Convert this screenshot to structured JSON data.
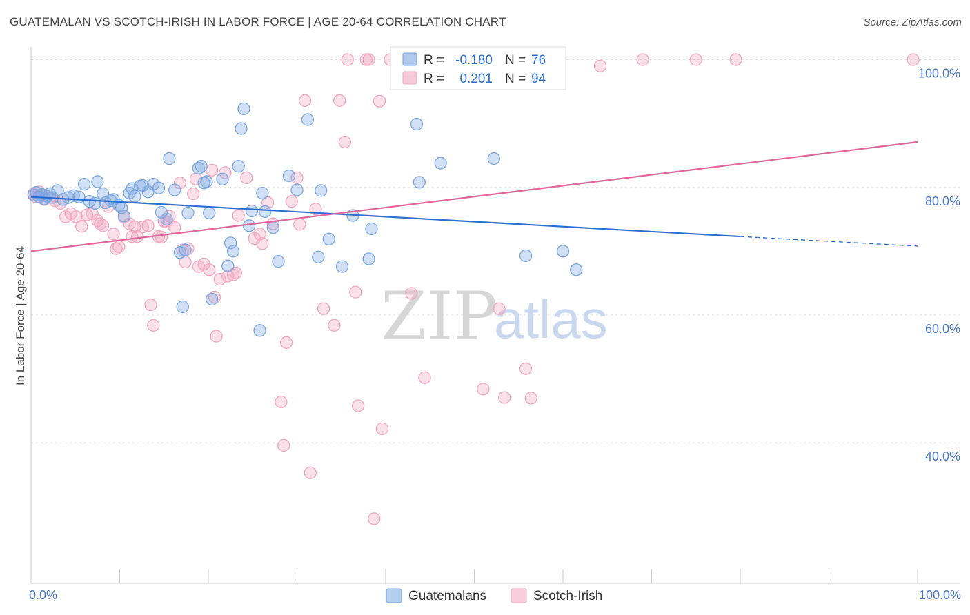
{
  "title": "GUATEMALAN VS SCOTCH-IRISH IN LABOR FORCE | AGE 20-64 CORRELATION CHART",
  "source": "Source: ZipAtlas.com",
  "watermark": {
    "zip": "ZIP",
    "atlas": "atlas"
  },
  "chart_data": {
    "type": "scatter",
    "ylabel": "In Labor Force | Age 20-64",
    "xlim": [
      0,
      100
    ],
    "ylim": [
      18,
      102
    ],
    "x_tick_labels": [
      "0.0%",
      "100.0%"
    ],
    "y_ticks": [
      {
        "value": 100,
        "label": "100.0%"
      },
      {
        "value": 80,
        "label": "80.0%"
      },
      {
        "value": 60,
        "label": "60.0%"
      },
      {
        "value": 40,
        "label": "40.0%"
      }
    ],
    "grid": true,
    "legend_position": "top-center",
    "series": [
      {
        "name": "Guatemalans",
        "color": "#7aa6e0",
        "line_color": "#2a6fd0",
        "R": "-0.180",
        "N": "76",
        "trend": {
          "x0": 0,
          "y0": 78.5,
          "x1": 80,
          "y1": 72.3,
          "dash_to_x": 100,
          "dash_to_y": 70.8
        },
        "points": [
          [
            0.3,
            78.8
          ],
          [
            0.6,
            79.2
          ],
          [
            0.9,
            78.5
          ],
          [
            1.2,
            78.9
          ],
          [
            1.5,
            78.2
          ],
          [
            1.8,
            78.6
          ],
          [
            2.1,
            79.0
          ],
          [
            2.4,
            78.4
          ],
          [
            3.0,
            79.5
          ],
          [
            3.6,
            78.1
          ],
          [
            4.2,
            78.4
          ],
          [
            4.8,
            78.7
          ],
          [
            5.4,
            78.5
          ],
          [
            6.0,
            80.5
          ],
          [
            6.6,
            77.8
          ],
          [
            7.2,
            77.5
          ],
          [
            7.5,
            80.9
          ],
          [
            8.1,
            79.0
          ],
          [
            8.4,
            77.6
          ],
          [
            9.0,
            77.9
          ],
          [
            9.3,
            78.1
          ],
          [
            9.9,
            77.2
          ],
          [
            10.2,
            76.8
          ],
          [
            10.5,
            75.5
          ],
          [
            11.1,
            79.1
          ],
          [
            11.4,
            79.8
          ],
          [
            11.7,
            78.6
          ],
          [
            12.3,
            80.2
          ],
          [
            12.6,
            80.3
          ],
          [
            13.2,
            79.3
          ],
          [
            13.8,
            80.5
          ],
          [
            14.4,
            79.9
          ],
          [
            14.7,
            76.1
          ],
          [
            15.3,
            75.0
          ],
          [
            15.6,
            84.5
          ],
          [
            16.2,
            79.6
          ],
          [
            16.8,
            69.8
          ],
          [
            17.1,
            61.3
          ],
          [
            17.4,
            70.2
          ],
          [
            17.7,
            76.0
          ],
          [
            18.9,
            83.0
          ],
          [
            19.2,
            83.3
          ],
          [
            19.5,
            80.7
          ],
          [
            19.8,
            80.9
          ],
          [
            20.1,
            76.0
          ],
          [
            20.4,
            62.5
          ],
          [
            21.6,
            81.3
          ],
          [
            22.2,
            67.7
          ],
          [
            22.5,
            71.3
          ],
          [
            22.8,
            70.0
          ],
          [
            23.4,
            83.3
          ],
          [
            23.7,
            89.2
          ],
          [
            24.0,
            92.3
          ],
          [
            24.6,
            74.0
          ],
          [
            24.9,
            76.3
          ],
          [
            25.8,
            57.6
          ],
          [
            26.1,
            79.1
          ],
          [
            26.4,
            76.2
          ],
          [
            27.3,
            73.7
          ],
          [
            27.9,
            68.4
          ],
          [
            29.1,
            81.8
          ],
          [
            30.0,
            79.6
          ],
          [
            31.2,
            90.6
          ],
          [
            32.4,
            69.1
          ],
          [
            32.7,
            79.5
          ],
          [
            33.6,
            71.9
          ],
          [
            35.1,
            67.6
          ],
          [
            36.3,
            75.6
          ],
          [
            38.1,
            68.8
          ],
          [
            38.4,
            73.5
          ],
          [
            43.5,
            89.9
          ],
          [
            43.8,
            80.8
          ],
          [
            46.2,
            83.8
          ],
          [
            52.2,
            84.5
          ],
          [
            55.8,
            69.3
          ],
          [
            60.0,
            70.0
          ],
          [
            61.5,
            67.1
          ]
        ]
      },
      {
        "name": "Scotch-Irish",
        "color": "#f2a6bf",
        "line_color": "#e0659a",
        "R": "0.201",
        "N": "94",
        "trend": {
          "x0": 0,
          "y0": 70.0,
          "x1": 100,
          "y1": 87.1
        },
        "points": [
          [
            0.3,
            79.0
          ],
          [
            0.6,
            78.5
          ],
          [
            0.9,
            79.3
          ],
          [
            1.2,
            78.8
          ],
          [
            1.5,
            78.1
          ],
          [
            2.1,
            78.4
          ],
          [
            2.7,
            77.9
          ],
          [
            3.3,
            77.5
          ],
          [
            3.9,
            75.4
          ],
          [
            4.5,
            75.9
          ],
          [
            5.1,
            75.4
          ],
          [
            5.7,
            73.9
          ],
          [
            6.3,
            75.7
          ],
          [
            6.9,
            75.9
          ],
          [
            7.5,
            74.8
          ],
          [
            7.8,
            74.3
          ],
          [
            8.1,
            74.0
          ],
          [
            8.7,
            77.0
          ],
          [
            9.3,
            72.7
          ],
          [
            9.6,
            70.4
          ],
          [
            9.9,
            70.7
          ],
          [
            10.5,
            75.3
          ],
          [
            11.1,
            74.3
          ],
          [
            11.4,
            72.3
          ],
          [
            11.7,
            73.8
          ],
          [
            12.0,
            72.3
          ],
          [
            12.6,
            73.8
          ],
          [
            13.2,
            74.0
          ],
          [
            13.5,
            61.6
          ],
          [
            13.8,
            58.4
          ],
          [
            14.4,
            72.3
          ],
          [
            14.7,
            72.2
          ],
          [
            15.0,
            74.7
          ],
          [
            15.3,
            74.6
          ],
          [
            15.6,
            75.5
          ],
          [
            16.2,
            73.7
          ],
          [
            16.8,
            80.7
          ],
          [
            17.1,
            70.2
          ],
          [
            17.4,
            68.3
          ],
          [
            17.7,
            70.4
          ],
          [
            18.3,
            79.0
          ],
          [
            18.6,
            81.3
          ],
          [
            18.9,
            67.6
          ],
          [
            19.5,
            68.0
          ],
          [
            20.1,
            67.1
          ],
          [
            20.4,
            82.7
          ],
          [
            20.7,
            62.8
          ],
          [
            20.9,
            56.7
          ],
          [
            21.3,
            65.6
          ],
          [
            21.9,
            82.3
          ],
          [
            22.2,
            66.1
          ],
          [
            22.8,
            66.3
          ],
          [
            23.1,
            66.6
          ],
          [
            23.4,
            75.6
          ],
          [
            24.3,
            81.5
          ],
          [
            25.2,
            72.0
          ],
          [
            25.8,
            72.7
          ],
          [
            26.1,
            71.2
          ],
          [
            26.7,
            77.6
          ],
          [
            27.3,
            74.3
          ],
          [
            28.2,
            46.4
          ],
          [
            28.5,
            39.6
          ],
          [
            28.8,
            55.7
          ],
          [
            29.4,
            77.8
          ],
          [
            30.0,
            81.5
          ],
          [
            30.3,
            74.2
          ],
          [
            30.9,
            93.6
          ],
          [
            31.5,
            35.3
          ],
          [
            32.1,
            76.6
          ],
          [
            33.0,
            61.0
          ],
          [
            34.2,
            58.4
          ],
          [
            34.8,
            93.6
          ],
          [
            35.4,
            87.1
          ],
          [
            35.7,
            100.0
          ],
          [
            36.6,
            63.6
          ],
          [
            36.9,
            45.8
          ],
          [
            37.8,
            100.0
          ],
          [
            38.1,
            100.0
          ],
          [
            38.7,
            28.1
          ],
          [
            39.3,
            93.5
          ],
          [
            39.6,
            42.2
          ],
          [
            40.5,
            100.0
          ],
          [
            41.4,
            100.0
          ],
          [
            42.9,
            63.4
          ],
          [
            44.1,
            100.0
          ],
          [
            44.4,
            50.2
          ],
          [
            46.5,
            100.0
          ],
          [
            48.0,
            100.0
          ],
          [
            51.0,
            48.4
          ],
          [
            52.8,
            61.0
          ],
          [
            53.4,
            47.1
          ],
          [
            55.8,
            51.6
          ],
          [
            56.4,
            47.0
          ],
          [
            64.2,
            99.0
          ],
          [
            69.0,
            100.0
          ],
          [
            75.0,
            100.0
          ],
          [
            79.5,
            100.0
          ],
          [
            99.5,
            100.0
          ]
        ]
      }
    ]
  }
}
